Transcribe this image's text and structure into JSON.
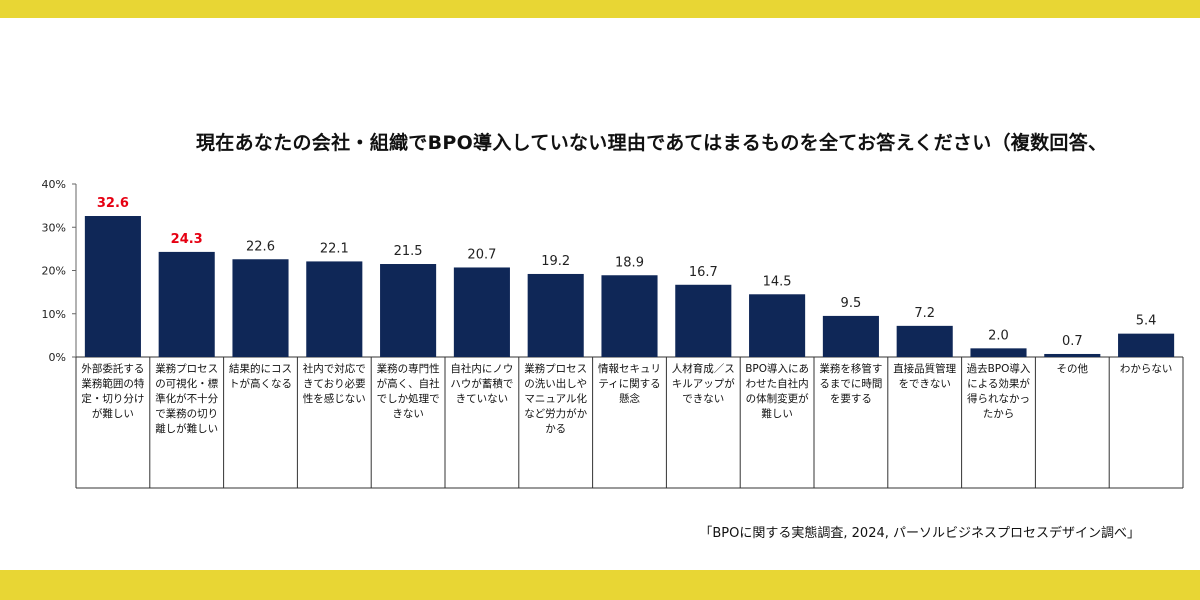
{
  "colors": {
    "band": "#E8D634",
    "bar": "#0F2757",
    "highlight_label": "#E60012",
    "label": "#222222",
    "axis": "#666666"
  },
  "source": "「BPOに関する実態調査, 2024, パーソルビジネスプロセスデザイン調べ」",
  "chart_data": {
    "type": "bar",
    "title": "現在あなたの会社・組織でBPO導入していない理由であてはまるものを全てお答えください（複数回答、",
    "xlabel": "",
    "ylabel": "",
    "ylim": [
      0,
      40
    ],
    "yticks": [
      "0%",
      "10%",
      "20%",
      "30%",
      "40%"
    ],
    "ytick_values": [
      0,
      10,
      20,
      30,
      40
    ],
    "categories": [
      "外部委託する業務範囲の特定・切り分けが難しい",
      "業務プロセスの可視化・標準化が不十分で業務の切り離しが難しい",
      "結果的にコストが高くなる",
      "社内で対応できており必要性を感じない",
      "業務の専門性が高く、自社でしか処理できない",
      "自社内にノウハウが蓄積できていない",
      "業務プロセスの洗い出しやマニュアル化など労力がかかる",
      "情報セキュリティに関する懸念",
      "人材育成／スキルアップができない",
      "BPO導入にあわせた自社内の体制変更が難しい",
      "業務を移管するまでに時間を要する",
      "直接品質管理をできない",
      "過去BPO導入による効果が得られなかったから",
      "その他",
      "わからない"
    ],
    "values": [
      32.6,
      24.3,
      22.6,
      22.1,
      21.5,
      20.7,
      19.2,
      18.9,
      16.7,
      14.5,
      9.5,
      7.2,
      2.0,
      0.7,
      5.4
    ],
    "value_labels": [
      "32.6",
      "24.3",
      "22.6",
      "22.1",
      "21.5",
      "20.7",
      "19.2",
      "18.9",
      "16.7",
      "14.5",
      "9.5",
      "7.2",
      "2.0",
      "0.7",
      "5.4"
    ],
    "highlighted": [
      0,
      1
    ],
    "grid": false
  }
}
